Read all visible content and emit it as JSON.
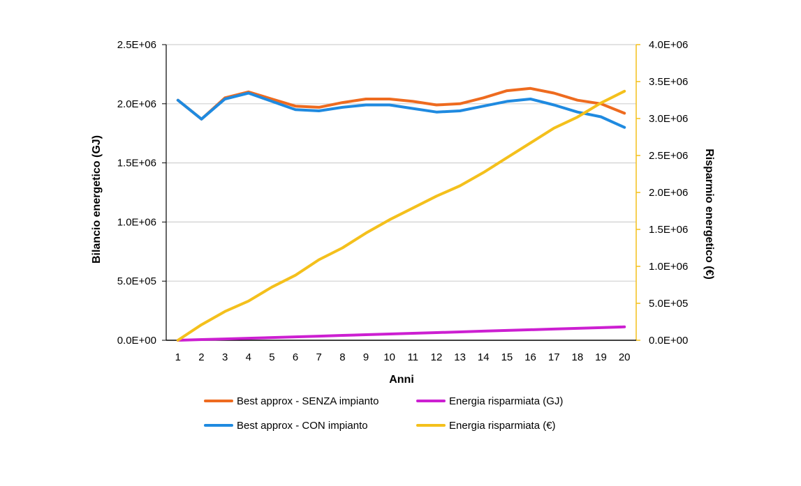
{
  "chart_data": {
    "type": "line",
    "x": [
      1,
      2,
      3,
      4,
      5,
      6,
      7,
      8,
      9,
      10,
      11,
      12,
      13,
      14,
      15,
      16,
      17,
      18,
      19,
      20
    ],
    "xlabel": "Anni",
    "ylabel": "Bilancio energetico (GJ)",
    "y2label": "Risparmio energetico (€)",
    "ylim": [
      0,
      2500000
    ],
    "y2lim": [
      0,
      4000000
    ],
    "yticks": [
      "0.0E+00",
      "5.0E+05",
      "1.0E+06",
      "1.5E+06",
      "2.0E+06",
      "2.5E+06"
    ],
    "y2ticks": [
      "0.0E+00",
      "5.0E+05",
      "1.0E+06",
      "1.5E+06",
      "2.0E+06",
      "2.5E+06",
      "3.0E+06",
      "3.5E+06",
      "4.0E+06"
    ],
    "grid": true,
    "legend_position": "bottom",
    "series": [
      {
        "name": "Best approx - SENZA impianto",
        "color": "#EE6B1F",
        "axis": "left",
        "values": [
          2030000,
          1870000,
          2050000,
          2100000,
          2040000,
          1980000,
          1970000,
          2010000,
          2040000,
          2040000,
          2020000,
          1990000,
          2000000,
          2050000,
          2110000,
          2130000,
          2090000,
          2030000,
          2000000,
          1920000
        ]
      },
      {
        "name": "Best approx - CON impianto",
        "color": "#1F8AE0",
        "axis": "left",
        "values": [
          2030000,
          1870000,
          2040000,
          2090000,
          2020000,
          1950000,
          1940000,
          1970000,
          1990000,
          1990000,
          1960000,
          1930000,
          1940000,
          1980000,
          2020000,
          2040000,
          1990000,
          1930000,
          1890000,
          1800000
        ]
      },
      {
        "name": "Energia risparmiata (GJ)",
        "color": "#CC1FD1",
        "axis": "left",
        "values": [
          0,
          6000,
          11000,
          17000,
          23000,
          29000,
          35000,
          41000,
          47000,
          53000,
          59000,
          65000,
          71000,
          77000,
          83000,
          89000,
          95000,
          101000,
          107000,
          113000
        ]
      },
      {
        "name": "Energia risparmiata (€)",
        "color": "#F4C01C",
        "axis": "right",
        "values": [
          0,
          210000,
          390000,
          530000,
          720000,
          880000,
          1090000,
          1250000,
          1450000,
          1630000,
          1790000,
          1950000,
          2090000,
          2270000,
          2470000,
          2670000,
          2870000,
          3020000,
          3210000,
          3370000
        ]
      }
    ]
  }
}
